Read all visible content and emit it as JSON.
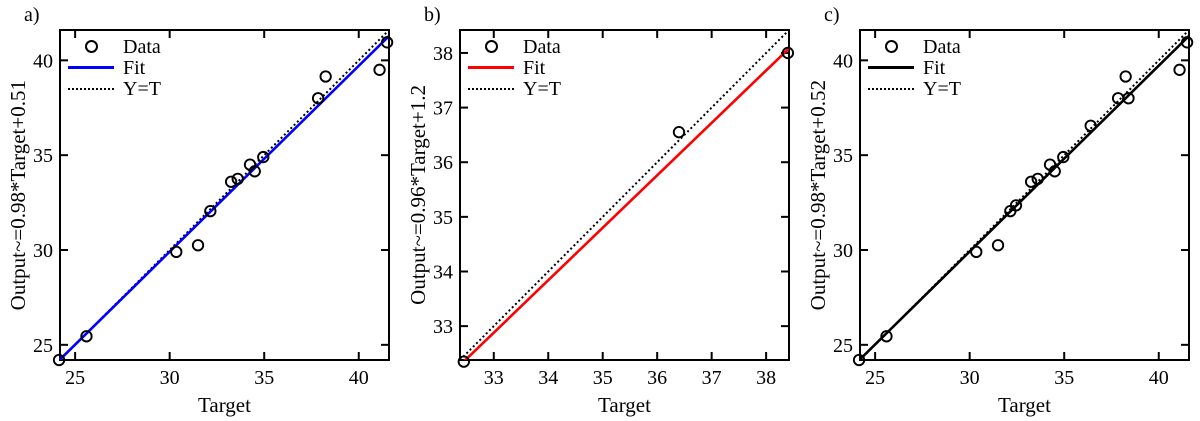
{
  "figure": {
    "background": "#ffffff",
    "description": "Three regression scatter plots of network Output vs Target"
  },
  "chart_data": [
    {
      "type": "scatter",
      "panel_label": "a)",
      "xlabel": "Target",
      "ylabel": "Output~=0.98*Target+0.51",
      "xlim": [
        24.2,
        41.6
      ],
      "ylim": [
        24.2,
        41.6
      ],
      "xticks": [
        25,
        30,
        35,
        40
      ],
      "yticks": [
        25,
        30,
        35,
        40
      ],
      "grid": false,
      "legend": {
        "position": "top-left",
        "entries": [
          "Data",
          "Fit",
          "Y=T"
        ]
      },
      "series": [
        {
          "name": "Data",
          "type": "scatter",
          "marker": "circle",
          "color": "#000000",
          "points": [
            [
              24.15,
              24.2
            ],
            [
              25.6,
              25.45
            ],
            [
              30.35,
              29.9
            ],
            [
              31.5,
              30.25
            ],
            [
              32.15,
              32.05
            ],
            [
              33.25,
              33.6
            ],
            [
              33.6,
              33.75
            ],
            [
              34.25,
              34.5
            ],
            [
              34.5,
              34.15
            ],
            [
              34.95,
              34.9
            ],
            [
              37.85,
              38.0
            ],
            [
              38.25,
              39.15
            ],
            [
              41.1,
              39.5
            ],
            [
              41.5,
              40.95
            ]
          ]
        },
        {
          "name": "Fit",
          "type": "line",
          "style": "solid",
          "color": "#0000ff",
          "slope": 0.98,
          "intercept": 0.51,
          "equation": "Output = 0.98*Target+0.51"
        },
        {
          "name": "Y=T",
          "type": "line",
          "style": "dotted",
          "color": "#000000",
          "slope": 1,
          "intercept": 0,
          "equation": "Y = T"
        }
      ]
    },
    {
      "type": "scatter",
      "panel_label": "b)",
      "xlabel": "Target",
      "ylabel": "Output~=0.96*Target+1.2",
      "xlim": [
        32.38,
        38.42
      ],
      "ylim": [
        32.38,
        38.42
      ],
      "xticks": [
        33,
        34,
        35,
        36,
        37,
        38
      ],
      "yticks": [
        33,
        34,
        35,
        36,
        37,
        38
      ],
      "grid": false,
      "legend": {
        "position": "top-left",
        "entries": [
          "Data",
          "Fit",
          "Y=T"
        ]
      },
      "series": [
        {
          "name": "Data",
          "type": "scatter",
          "marker": "circle",
          "color": "#000000",
          "points": [
            [
              32.45,
              32.35
            ],
            [
              36.4,
              36.55
            ],
            [
              38.4,
              38.0
            ]
          ]
        },
        {
          "name": "Fit",
          "type": "line",
          "style": "solid",
          "color": "#ff0000",
          "slope": 0.96,
          "intercept": 1.2,
          "equation": "Output = 0.96*Target+1.2"
        },
        {
          "name": "Y=T",
          "type": "line",
          "style": "dotted",
          "color": "#000000",
          "slope": 1,
          "intercept": 0,
          "equation": "Y = T"
        }
      ]
    },
    {
      "type": "scatter",
      "panel_label": "c)",
      "xlabel": "Target",
      "ylabel": "Output~=0.98*Target+0.52",
      "xlim": [
        24.2,
        41.6
      ],
      "ylim": [
        24.2,
        41.6
      ],
      "xticks": [
        25,
        30,
        35,
        40
      ],
      "yticks": [
        25,
        30,
        35,
        40
      ],
      "grid": false,
      "legend": {
        "position": "top-left",
        "entries": [
          "Data",
          "Fit",
          "Y=T"
        ]
      },
      "series": [
        {
          "name": "Data",
          "type": "scatter",
          "marker": "circle",
          "color": "#000000",
          "points": [
            [
              24.15,
              24.2
            ],
            [
              25.6,
              25.45
            ],
            [
              30.35,
              29.9
            ],
            [
              31.5,
              30.25
            ],
            [
              32.15,
              32.05
            ],
            [
              32.45,
              32.35
            ],
            [
              33.25,
              33.6
            ],
            [
              33.6,
              33.75
            ],
            [
              34.25,
              34.5
            ],
            [
              34.5,
              34.15
            ],
            [
              34.95,
              34.9
            ],
            [
              36.4,
              36.55
            ],
            [
              37.85,
              38.0
            ],
            [
              38.4,
              38.0
            ],
            [
              38.25,
              39.15
            ],
            [
              41.1,
              39.5
            ],
            [
              41.5,
              40.95
            ]
          ]
        },
        {
          "name": "Fit",
          "type": "line",
          "style": "solid",
          "color": "#000000",
          "slope": 0.98,
          "intercept": 0.52,
          "equation": "Output = 0.98*Target+0.52"
        },
        {
          "name": "Y=T",
          "type": "line",
          "style": "dotted",
          "color": "#000000",
          "slope": 1,
          "intercept": 0,
          "equation": "Y = T"
        }
      ]
    }
  ]
}
